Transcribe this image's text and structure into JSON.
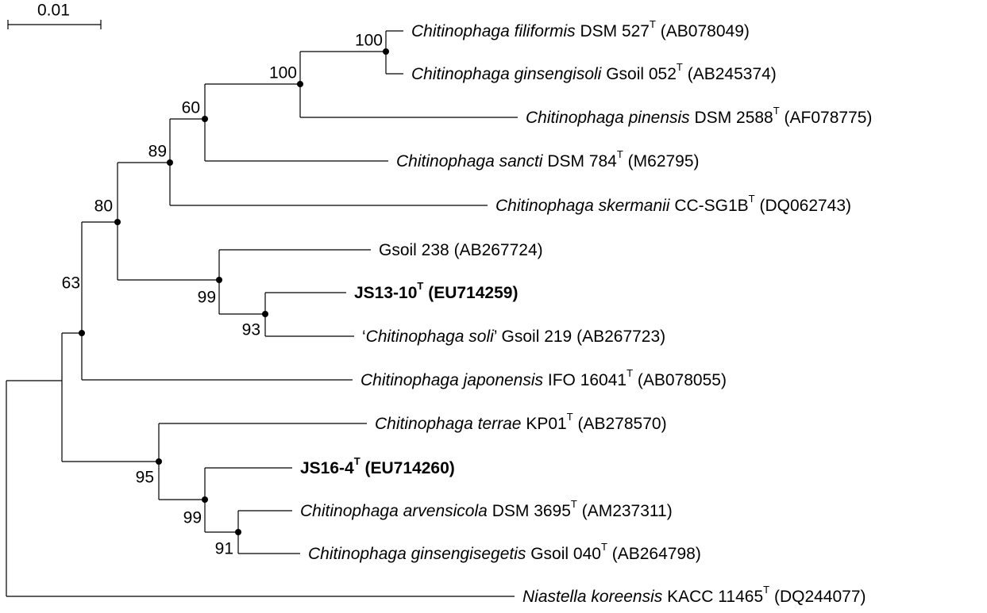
{
  "scale_bar": {
    "label": "0.01"
  },
  "taxa": [
    {
      "id": "filiformis",
      "genus": "Chitinophaga",
      "epithet": "filiformis",
      "strain": "DSM 527",
      "type_strain": true,
      "accession": "(AB078049)"
    },
    {
      "id": "ginsengisoli",
      "genus": "Chitinophaga",
      "epithet": "ginsengisoli",
      "strain": "Gsoil 052",
      "type_strain": true,
      "accession": "(AB245374)"
    },
    {
      "id": "pinensis",
      "genus": "Chitinophaga",
      "epithet": "pinensis",
      "strain": "DSM 2588",
      "type_strain": true,
      "accession": "(AF078775)"
    },
    {
      "id": "sancti",
      "genus": "Chitinophaga",
      "epithet": "sancti",
      "strain": "DSM 784",
      "type_strain": true,
      "accession": "(M62795)"
    },
    {
      "id": "skermanii",
      "genus": "Chitinophaga",
      "epithet": "skermanii",
      "strain": "CC-SG1B",
      "type_strain": true,
      "accession": "(DQ062743)"
    },
    {
      "id": "gsoil238",
      "strain": "Gsoil 238",
      "type_strain": false,
      "accession": "(AB267724)"
    },
    {
      "id": "js13",
      "strain": "JS13-10",
      "type_strain": true,
      "accession": "(EU714259)",
      "bold": true
    },
    {
      "id": "soli",
      "quoted_name": "Chitinophaga soli",
      "strain": "Gsoil 219",
      "type_strain": false,
      "accession": "(AB267723)"
    },
    {
      "id": "japonensis",
      "genus": "Chitinophaga",
      "epithet": "japonensis",
      "strain": "IFO 16041",
      "type_strain": true,
      "accession": "(AB078055)"
    },
    {
      "id": "terrae",
      "genus": "Chitinophaga",
      "epithet": "terrae",
      "strain": "KP01",
      "type_strain": true,
      "accession": "(AB278570)"
    },
    {
      "id": "js16",
      "strain": "JS16-4",
      "type_strain": true,
      "accession": "(EU714260)",
      "bold": true
    },
    {
      "id": "arvensicola",
      "genus": "Chitinophaga",
      "epithet": "arvensicola",
      "strain": "DSM 3695",
      "type_strain": true,
      "accession": "(AM237311)"
    },
    {
      "id": "ginsengisegetis",
      "genus": "Chitinophaga",
      "epithet": "ginsengisegetis",
      "strain": "Gsoil 040",
      "type_strain": true,
      "accession": "(AB264798)"
    },
    {
      "id": "koreensis",
      "genus": "Niastella",
      "epithet": "koreensis",
      "strain": "KACC 11465",
      "type_strain": true,
      "accession": "(DQ244077)"
    }
  ],
  "bootstrap": [
    {
      "node": "n_fil_gin",
      "value": "100"
    },
    {
      "node": "n_pinensis",
      "value": "100"
    },
    {
      "node": "n_sancti",
      "value": "60"
    },
    {
      "node": "n_skermanii",
      "value": "89"
    },
    {
      "node": "n_main",
      "value": "80"
    },
    {
      "node": "n_root_chit",
      "value": "63"
    },
    {
      "node": "n_gsoil",
      "value": "99"
    },
    {
      "node": "n_js13",
      "value": "93"
    },
    {
      "node": "n_terrae",
      "value": "95"
    },
    {
      "node": "n_js16",
      "value": "99"
    },
    {
      "node": "n_arv",
      "value": "91"
    }
  ]
}
